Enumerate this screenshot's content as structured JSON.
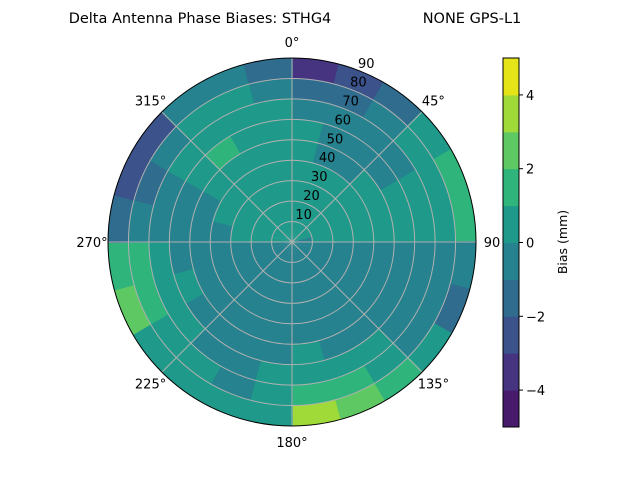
{
  "chart_data": {
    "type": "heatmap",
    "subtype": "polar-contour",
    "title": "Delta Antenna Phase Biases: STHG4",
    "title_right": "NONE GPS-L1",
    "colorbar": {
      "label": "Bias (mm)",
      "range": [
        -5,
        5
      ],
      "levels": [
        -5,
        -4,
        -3,
        -2,
        -1,
        0,
        1,
        2,
        3,
        4,
        5
      ],
      "ticks": [
        "−4",
        "−2",
        "0",
        "2",
        "4"
      ],
      "tick_values": [
        -4,
        -2,
        0,
        2,
        4
      ],
      "colormap": "viridis",
      "band_colors": [
        "#481a6c",
        "#463480",
        "#3b528b",
        "#2f6c8e",
        "#26828e",
        "#1f9a8a",
        "#2fb47c",
        "#5ec962",
        "#a0da39",
        "#e5e419"
      ]
    },
    "angular_axis": {
      "zero_location": "north",
      "direction": "clockwise",
      "tick_labels": [
        "0°",
        "45°",
        "90",
        "135°",
        "180°",
        "225°",
        "270°",
        "315°"
      ],
      "tick_values": [
        0,
        45,
        90,
        135,
        180,
        225,
        270,
        315
      ]
    },
    "radial_axis": {
      "range": [
        0,
        90
      ],
      "tick_labels": [
        "10",
        "20",
        "30",
        "40",
        "50",
        "60",
        "70",
        "80",
        "90"
      ],
      "tick_values": [
        10,
        20,
        30,
        40,
        50,
        60,
        70,
        80,
        90
      ]
    },
    "grid": true,
    "grid_color": "#b0b0b0",
    "azimuth_bins": [
      0,
      15,
      30,
      45,
      60,
      75,
      90,
      105,
      120,
      135,
      150,
      165,
      180,
      195,
      210,
      225,
      240,
      255,
      270,
      285,
      300,
      315,
      330,
      345
    ],
    "zenith_bins": [
      5,
      15,
      25,
      35,
      45,
      55,
      65,
      75,
      85
    ],
    "values": [
      [
        0.5,
        0.5,
        0.5,
        0.5,
        0.5,
        0.5,
        -0.5,
        -1.5,
        -3.5
      ],
      [
        0.5,
        0.5,
        0.5,
        0.5,
        -0.5,
        -0.5,
        -0.5,
        -1.5,
        -2.5
      ],
      [
        0.5,
        0.5,
        0.5,
        0.5,
        -0.5,
        -0.5,
        -0.5,
        -0.5,
        -1.5
      ],
      [
        0.5,
        0.5,
        0.5,
        0.5,
        0.5,
        -0.5,
        -0.5,
        0.5,
        0.5
      ],
      [
        0.5,
        0.5,
        0.5,
        0.5,
        0.5,
        0.5,
        0.5,
        0.5,
        1.5
      ],
      [
        -0.5,
        0.5,
        0.5,
        0.5,
        0.5,
        0.5,
        0.5,
        0.5,
        1.5
      ],
      [
        -0.5,
        -0.5,
        -0.5,
        -0.5,
        -0.5,
        -0.5,
        -0.5,
        -0.5,
        -0.5
      ],
      [
        -0.5,
        -0.5,
        -0.5,
        -0.5,
        -0.5,
        -0.5,
        -0.5,
        -0.5,
        -1.5
      ],
      [
        -0.5,
        -0.5,
        -0.5,
        -0.5,
        -0.5,
        -0.5,
        -0.5,
        -0.5,
        0.5
      ],
      [
        -0.5,
        -0.5,
        -0.5,
        -0.5,
        -0.5,
        -0.5,
        0.5,
        0.5,
        1.5
      ],
      [
        -0.5,
        -0.5,
        -0.5,
        -0.5,
        -0.5,
        -0.5,
        0.5,
        1.5,
        2.5
      ],
      [
        -0.5,
        -0.5,
        -0.5,
        -0.5,
        -0.5,
        0.5,
        0.5,
        1.5,
        3.5
      ],
      [
        -0.5,
        -0.5,
        -0.5,
        -0.5,
        -0.5,
        -0.5,
        0.5,
        0.5,
        0.5
      ],
      [
        -0.5,
        -0.5,
        -0.5,
        -0.5,
        -0.5,
        -0.5,
        -0.5,
        -0.5,
        0.5
      ],
      [
        -0.5,
        -0.5,
        -0.5,
        -0.5,
        -0.5,
        -0.5,
        -0.5,
        0.5,
        0.5
      ],
      [
        -0.5,
        -0.5,
        -0.5,
        -0.5,
        -0.5,
        -0.5,
        0.5,
        0.5,
        0.5
      ],
      [
        -0.5,
        -0.5,
        -0.5,
        -0.5,
        -0.5,
        0.5,
        0.5,
        1.5,
        2.5
      ],
      [
        -0.5,
        -0.5,
        -0.5,
        -0.5,
        -0.5,
        -0.5,
        0.5,
        1.5,
        1.5
      ],
      [
        0.5,
        0.5,
        0.5,
        -0.5,
        -0.5,
        -0.5,
        -0.5,
        -0.5,
        -1.5
      ],
      [
        0.5,
        0.5,
        0.5,
        0.5,
        -0.5,
        -0.5,
        -0.5,
        -1.5,
        -2.5
      ],
      [
        0.5,
        0.5,
        0.5,
        0.5,
        0.5,
        0.5,
        0.5,
        -0.5,
        -2.5
      ],
      [
        0.5,
        0.5,
        0.5,
        0.5,
        0.5,
        1.5,
        0.5,
        0.5,
        -0.5
      ],
      [
        0.5,
        0.5,
        0.5,
        0.5,
        0.5,
        0.5,
        0.5,
        0.5,
        -0.5
      ],
      [
        0.5,
        0.5,
        0.5,
        0.5,
        0.5,
        0.5,
        0.5,
        -0.5,
        -1.5
      ]
    ]
  }
}
